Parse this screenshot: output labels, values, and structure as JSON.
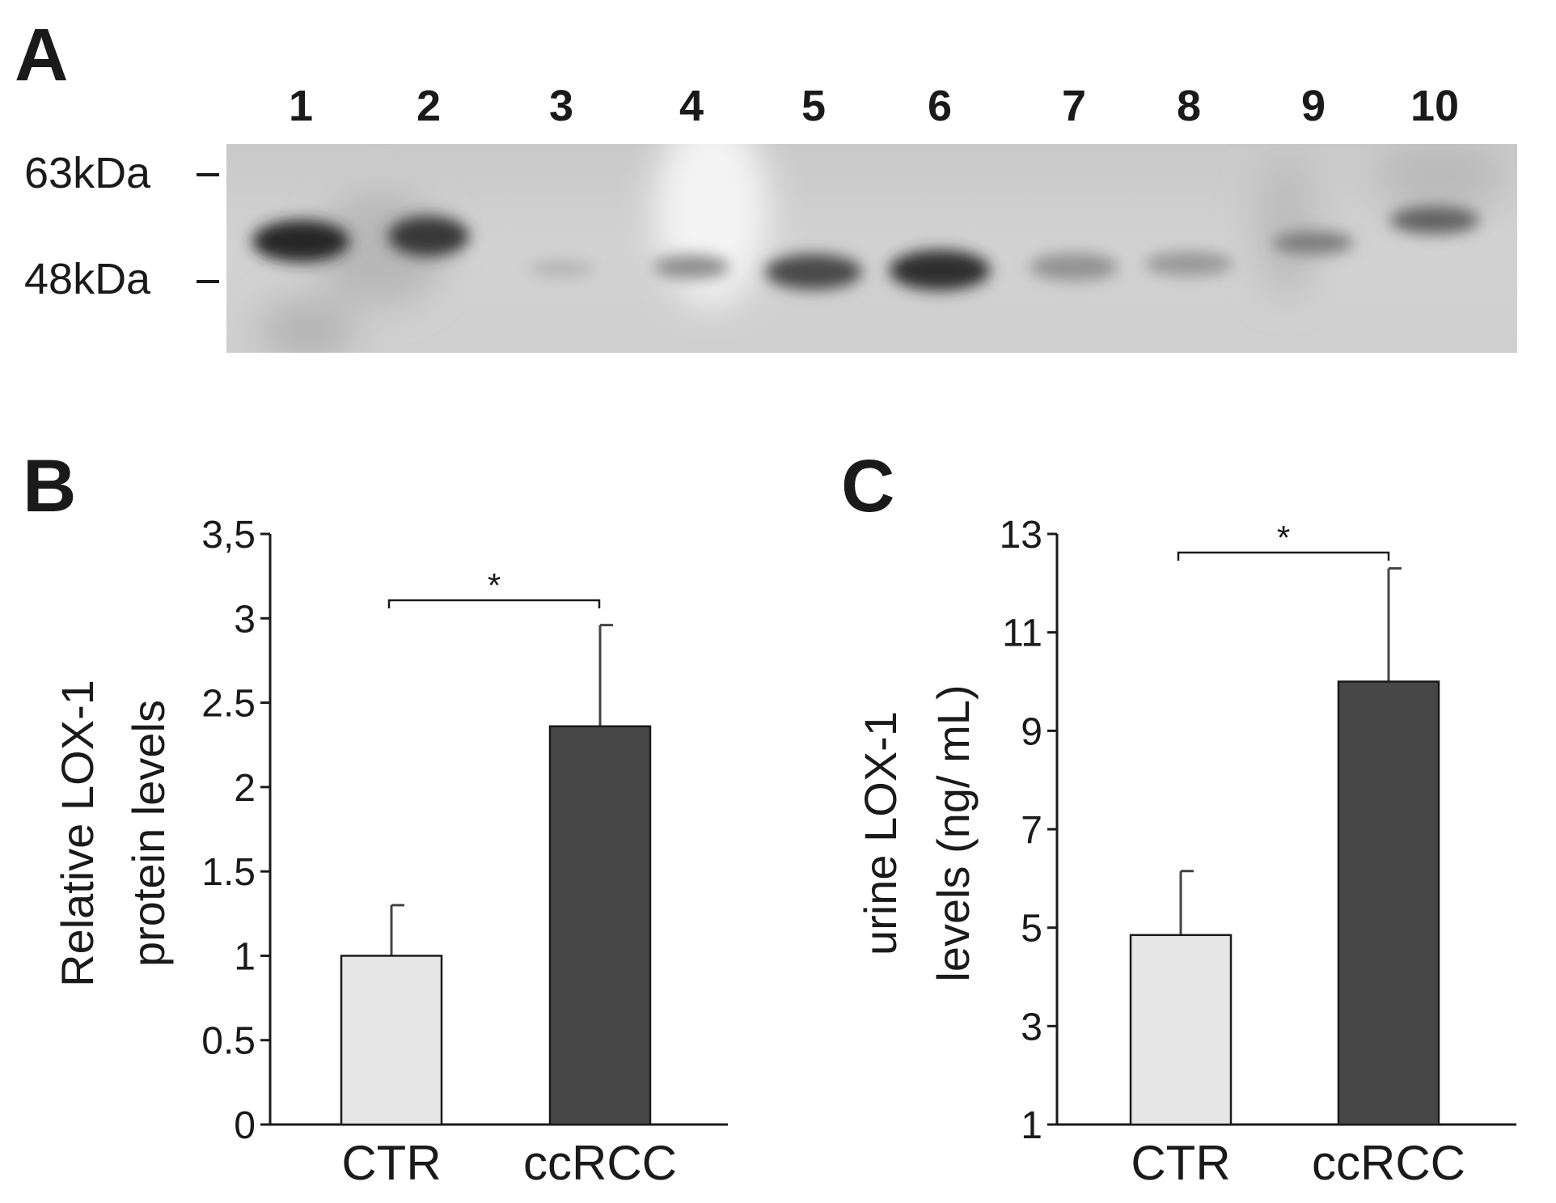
{
  "panels": {
    "a_label": "A",
    "b_label": "B",
    "c_label": "C"
  },
  "blot": {
    "lanes": [
      "1",
      "2",
      "3",
      "4",
      "5",
      "6",
      "7",
      "8",
      "9",
      "10"
    ],
    "markers": [
      "63kDa",
      "48kDa"
    ],
    "band_intensity": [
      0.95,
      0.85,
      0.12,
      0.35,
      0.75,
      0.9,
      0.32,
      0.28,
      0.45,
      0.6
    ]
  },
  "colors": {
    "ctr_bar": "#e6e6e6",
    "ccrcc_bar": "#474747",
    "axis": "#1a1a1a"
  },
  "chart_data": [
    {
      "type": "bar",
      "panel": "B",
      "categories": [
        "CTR",
        "ccRCC"
      ],
      "values": [
        1.0,
        2.36
      ],
      "errors": [
        0.3,
        0.6
      ],
      "ylabel_lines": [
        "Relative LOX-1",
        "protein levels"
      ],
      "ylim": [
        0,
        3.5
      ],
      "yticks": [
        0,
        0.5,
        1,
        1.5,
        2,
        2.5,
        3,
        3.5
      ],
      "ytick_labels": [
        "0",
        "0.5",
        "1",
        "1.5",
        "2",
        "2.5",
        "3",
        "3,5"
      ],
      "significance": "*",
      "grid": false
    },
    {
      "type": "bar",
      "panel": "C",
      "categories": [
        "CTR",
        "ccRCC"
      ],
      "values": [
        4.85,
        10.0
      ],
      "errors": [
        1.3,
        2.3
      ],
      "ylabel_lines": [
        "urine LOX-1",
        "levels (ng/ mL)"
      ],
      "ylim": [
        1,
        13
      ],
      "yticks": [
        1,
        3,
        5,
        7,
        9,
        11,
        13
      ],
      "ytick_labels": [
        "1",
        "3",
        "5",
        "7",
        "9",
        "11",
        "13"
      ],
      "significance": "*",
      "grid": false
    }
  ]
}
